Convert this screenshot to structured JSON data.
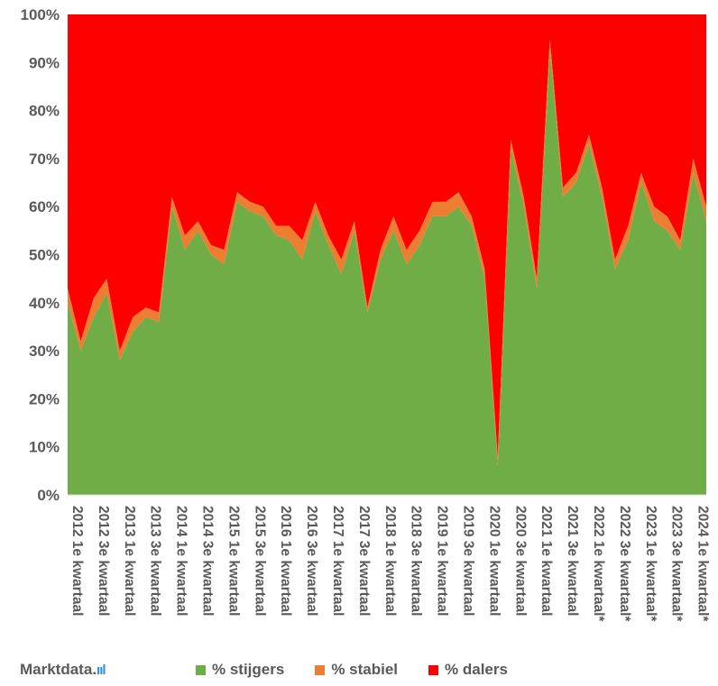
{
  "chart_data": {
    "type": "area",
    "stacked": true,
    "ylim": [
      0,
      100
    ],
    "y_ticks": [
      "0%",
      "10%",
      "20%",
      "30%",
      "40%",
      "50%",
      "60%",
      "70%",
      "80%",
      "90%",
      "100%"
    ],
    "x_tick_labels": [
      "2012 1e kwartaal",
      "2012 3e kwartaal",
      "2013 1e kwartaal",
      "2013 3e kwartaal",
      "2014 1e kwartaal",
      "2014 3e kwartaal",
      "2015 1e kwartaal",
      "2015 3e kwartaal",
      "2016 1e kwartaal",
      "2016 3e kwartaal",
      "2017 1e kwartaal",
      "2017 3e kwartaal",
      "2018 1e kwartaal",
      "2018 3e kwartaal",
      "2019 1e kwartaal",
      "2019 3e kwartaal",
      "2020 1e kwartaal",
      "2020 3e kwartaal",
      "2021 1e kwartaal",
      "2021 3e kwartaal",
      "2022 1e kwartaal*",
      "2022 3e kwartaal*",
      "2023 1e kwartaal*",
      "2023 3e kwartaal*",
      "2024 1e kwartaal*"
    ],
    "colors": {
      "stijgers": "#70ad47",
      "stabiel": "#ed7d31",
      "dalers": "#ff0000"
    },
    "legend_position": "bottom",
    "series": [
      {
        "name": "% stijgers",
        "values": [
          40,
          30,
          37,
          42,
          28,
          34,
          37,
          36,
          60,
          51,
          55,
          50,
          48,
          61,
          59,
          58,
          54,
          53,
          49,
          59,
          52,
          46,
          55,
          38,
          49,
          55,
          48,
          52,
          58,
          58,
          60,
          56,
          45,
          6,
          72,
          60,
          43,
          93,
          62,
          65,
          73,
          62,
          47,
          53,
          65,
          57,
          55,
          51,
          67,
          57
        ]
      },
      {
        "name": "% stabiel",
        "values": [
          3,
          2,
          4,
          3,
          2,
          3,
          2,
          2,
          2,
          3,
          2,
          2,
          3,
          2,
          2,
          2,
          2,
          3,
          4,
          2,
          2,
          3,
          2,
          1,
          2,
          3,
          3,
          3,
          3,
          3,
          3,
          2,
          2,
          2,
          2,
          2,
          2,
          2,
          2,
          2,
          2,
          2,
          2,
          3,
          2,
          3,
          3,
          2,
          3,
          3
        ]
      },
      {
        "name": "% dalers",
        "values": [
          57,
          68,
          59,
          55,
          70,
          63,
          61,
          62,
          38,
          46,
          43,
          48,
          49,
          37,
          39,
          40,
          44,
          44,
          47,
          39,
          46,
          51,
          43,
          61,
          49,
          42,
          49,
          45,
          39,
          39,
          37,
          42,
          53,
          92,
          26,
          38,
          55,
          5,
          36,
          33,
          25,
          36,
          51,
          44,
          33,
          40,
          42,
          47,
          30,
          40
        ]
      }
    ]
  },
  "brand": {
    "name": "Marktdata",
    "dot": ".",
    "bars": "ııl"
  }
}
